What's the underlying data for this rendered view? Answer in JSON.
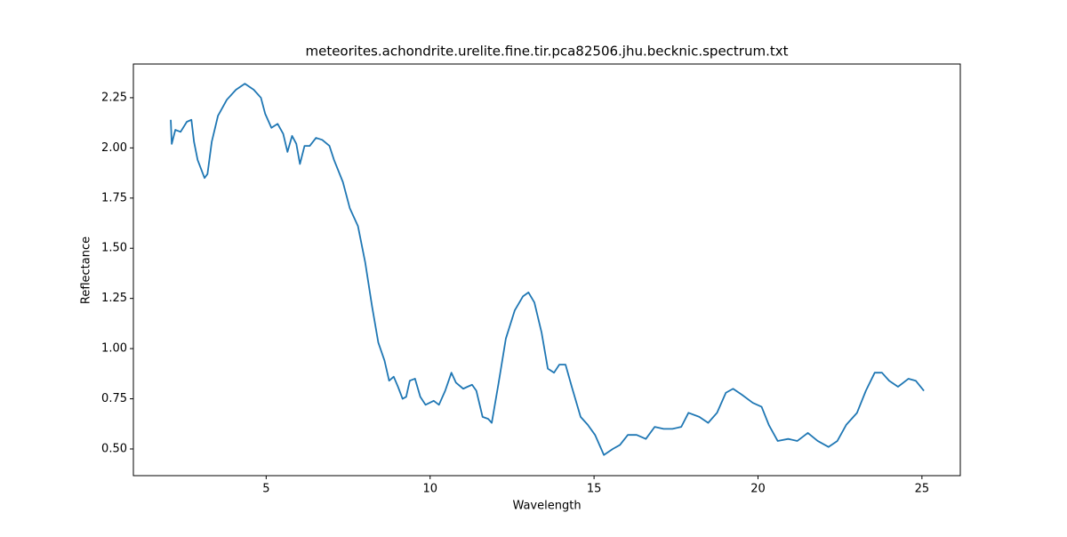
{
  "chart_data": {
    "type": "line",
    "title": "meteorites.achondrite.urelite.fine.tir.pca82506.jhu.becknic.spectrum.txt",
    "x_label": "Wavelength",
    "y_label": "Reflectance",
    "color": "#1f77b4",
    "x": [
      2.09,
      2.12,
      2.23,
      2.39,
      2.58,
      2.72,
      2.8,
      2.91,
      3.12,
      3.21,
      3.34,
      3.53,
      3.8,
      4.08,
      4.35,
      4.62,
      4.84,
      4.97,
      5.16,
      5.35,
      5.52,
      5.65,
      5.79,
      5.92,
      6.03,
      6.17,
      6.33,
      6.52,
      6.71,
      6.93,
      7.07,
      7.34,
      7.55,
      7.8,
      8.02,
      8.23,
      8.42,
      8.61,
      8.75,
      8.89,
      9.02,
      9.16,
      9.27,
      9.38,
      9.54,
      9.7,
      9.86,
      10.11,
      10.27,
      10.46,
      10.65,
      10.79,
      11.01,
      11.14,
      11.28,
      11.41,
      11.6,
      11.77,
      11.88,
      12.09,
      12.31,
      12.58,
      12.83,
      13.0,
      13.18,
      13.4,
      13.59,
      13.78,
      13.94,
      14.13,
      14.32,
      14.59,
      14.81,
      15.03,
      15.3,
      15.57,
      15.79,
      16.03,
      16.3,
      16.58,
      16.85,
      17.12,
      17.39,
      17.66,
      17.88,
      18.21,
      18.48,
      18.75,
      19.02,
      19.24,
      19.51,
      19.84,
      20.11,
      20.33,
      20.6,
      20.92,
      21.2,
      21.52,
      21.82,
      22.15,
      22.42,
      22.69,
      23.02,
      23.29,
      23.56,
      23.78,
      24.0,
      24.27,
      24.59,
      24.81,
      25.06
    ],
    "values": [
      2.14,
      2.02,
      2.09,
      2.08,
      2.13,
      2.14,
      2.03,
      1.94,
      1.85,
      1.87,
      2.03,
      2.16,
      2.24,
      2.29,
      2.32,
      2.29,
      2.25,
      2.17,
      2.1,
      2.12,
      2.07,
      1.98,
      2.06,
      2.02,
      1.92,
      2.01,
      2.01,
      2.05,
      2.04,
      2.01,
      1.94,
      1.83,
      1.7,
      1.61,
      1.43,
      1.21,
      1.03,
      0.94,
      0.84,
      0.86,
      0.81,
      0.75,
      0.76,
      0.84,
      0.85,
      0.76,
      0.72,
      0.74,
      0.72,
      0.79,
      0.88,
      0.83,
      0.8,
      0.81,
      0.82,
      0.79,
      0.66,
      0.65,
      0.63,
      0.83,
      1.05,
      1.19,
      1.26,
      1.28,
      1.23,
      1.08,
      0.9,
      0.88,
      0.92,
      0.92,
      0.81,
      0.66,
      0.62,
      0.57,
      0.47,
      0.5,
      0.52,
      0.57,
      0.57,
      0.55,
      0.61,
      0.6,
      0.6,
      0.61,
      0.68,
      0.66,
      0.63,
      0.68,
      0.78,
      0.8,
      0.77,
      0.73,
      0.71,
      0.62,
      0.54,
      0.55,
      0.54,
      0.58,
      0.54,
      0.51,
      0.54,
      0.62,
      0.68,
      0.79,
      0.88,
      0.88,
      0.84,
      0.81,
      0.85,
      0.84,
      0.79
    ],
    "xlim": [
      0.95,
      26.17
    ],
    "xticks": [
      5,
      10,
      15,
      20,
      25
    ],
    "ylim": [
      0.367,
      2.418
    ],
    "yticks": [
      {
        "value": 0.5,
        "label": "0.50"
      },
      0.75,
      {
        "value": 1,
        "label": "1.00"
      },
      1.25,
      {
        "value": 1.5,
        "label": "1.50"
      },
      1.75,
      {
        "value": 2,
        "label": "2.00"
      },
      2.25
    ]
  }
}
